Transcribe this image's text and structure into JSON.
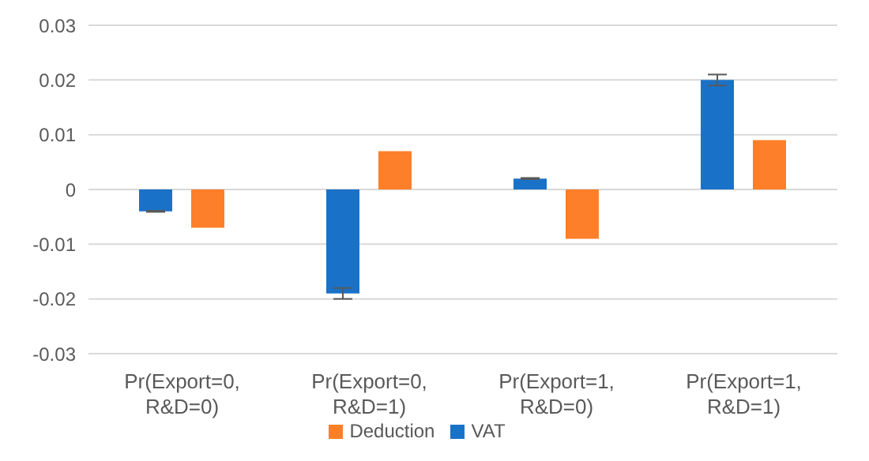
{
  "chart_data": {
    "type": "bar",
    "categories": [
      "Pr(Export=0, R&D=0)",
      "Pr(Export=0, R&D=1)",
      "Pr(Export=1, R&D=0)",
      "Pr(Export=1, R&D=1)"
    ],
    "series": [
      {
        "name": "VAT",
        "color": "#1a72c8",
        "values": [
          -0.004,
          -0.019,
          0.002,
          0.02
        ],
        "errors": [
          0.0001,
          0.001,
          0.0001,
          0.001
        ]
      },
      {
        "name": "Deduction",
        "color": "#fd7f29",
        "values": [
          -0.007,
          0.007,
          -0.009,
          0.009
        ]
      }
    ],
    "ylim": [
      -0.03,
      0.03
    ],
    "yticks": [
      -0.03,
      -0.02,
      -0.01,
      0,
      0.01,
      0.02,
      0.03
    ],
    "grid": "y",
    "legend": "bottom"
  }
}
